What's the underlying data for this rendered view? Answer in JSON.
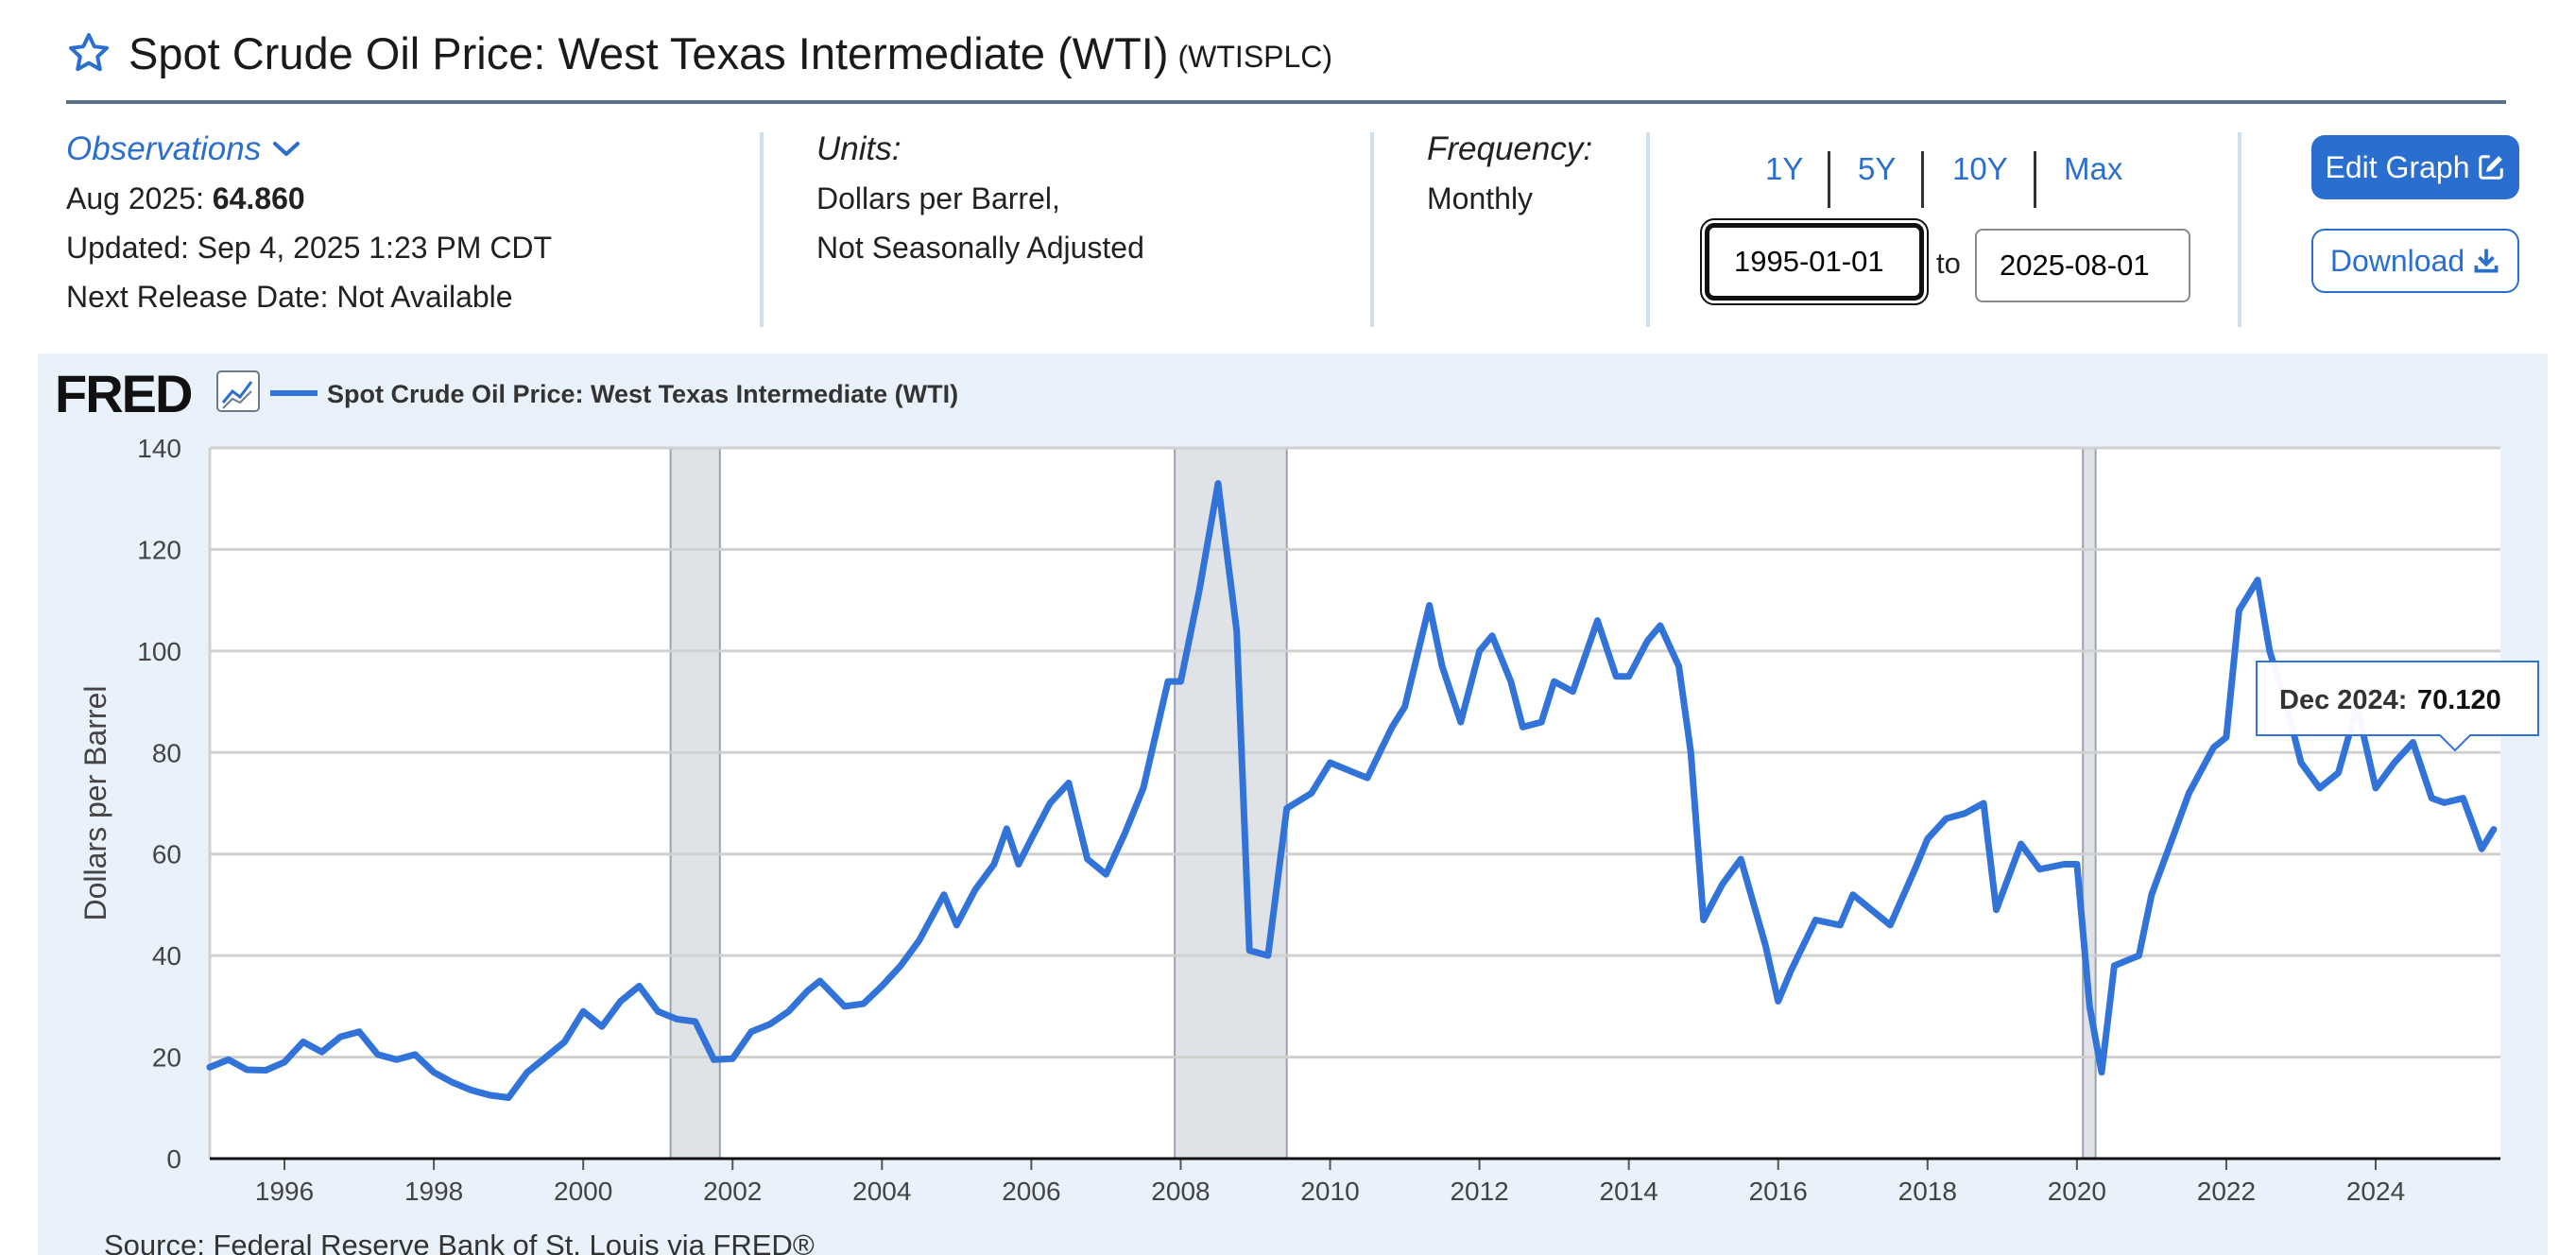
{
  "header": {
    "title": "Spot Crude Oil Price: West Texas Intermediate (WTI)",
    "series_id": "(WTISPLC)"
  },
  "observations": {
    "label": "Observations",
    "latest_period": "Aug 2025:",
    "latest_value": "64.860",
    "updated": "Updated: Sep 4, 2025 1:23 PM CDT",
    "next_release": "Next Release Date: Not Available"
  },
  "units": {
    "label": "Units:",
    "line1": "Dollars per Barrel,",
    "line2": "Not Seasonally Adjusted"
  },
  "frequency": {
    "label": "Frequency:",
    "value": "Monthly"
  },
  "range": {
    "buttons": [
      "1Y",
      "5Y",
      "10Y",
      "Max"
    ],
    "start": "1995-01-01",
    "to_label": "to",
    "end": "2025-08-01"
  },
  "toolbar": {
    "edit_label": "Edit Graph",
    "download_label": "Download"
  },
  "chart": {
    "logo": "FRED",
    "legend": "Spot Crude Oil Price: West Texas Intermediate (WTI)",
    "source": "Source: Federal Reserve Bank of St. Louis via FRED®",
    "tooltip_label": "Dec 2024:",
    "tooltip_value": "70.120",
    "colors": {
      "line": "#3173d9",
      "recession": "#dfe3e8",
      "accent": "#2a6fcf"
    }
  },
  "chart_data": {
    "type": "line",
    "ylabel": "Dollars per Barrel",
    "xlabel": "",
    "ylim": [
      0,
      140
    ],
    "y_ticks": [
      0,
      20,
      40,
      60,
      80,
      100,
      120,
      140
    ],
    "x_ticks": [
      1996,
      1998,
      2000,
      2002,
      2004,
      2006,
      2008,
      2010,
      2012,
      2014,
      2016,
      2018,
      2020,
      2022,
      2024
    ],
    "grid": true,
    "recessions": [
      [
        2001.17,
        2001.83
      ],
      [
        2007.92,
        2009.42
      ],
      [
        2020.08,
        2020.25
      ]
    ],
    "series": [
      {
        "x": [
          1995.0,
          1995.25,
          1995.5,
          1995.75,
          1996.0,
          1996.25,
          1996.5,
          1996.75,
          1997.0,
          1997.25,
          1997.5,
          1997.75,
          1998.0,
          1998.25,
          1998.5,
          1998.75,
          1999.0,
          1999.25,
          1999.5,
          1999.75,
          2000.0,
          2000.25,
          2000.5,
          2000.75,
          2001.0,
          2001.25,
          2001.5,
          2001.75,
          2002.0,
          2002.25,
          2002.5,
          2002.75,
          2003.0,
          2003.17,
          2003.5,
          2003.75,
          2004.0,
          2004.25,
          2004.5,
          2004.83,
          2005.0,
          2005.25,
          2005.5,
          2005.67,
          2005.83,
          2006.0,
          2006.25,
          2006.5,
          2006.75,
          2007.0,
          2007.25,
          2007.5,
          2007.83,
          2008.0,
          2008.25,
          2008.5,
          2008.75,
          2008.92,
          2009.17,
          2009.42,
          2009.75,
          2010.0,
          2010.33,
          2010.5,
          2010.83,
          2011.0,
          2011.33,
          2011.5,
          2011.75,
          2012.0,
          2012.17,
          2012.42,
          2012.58,
          2012.83,
          2013.0,
          2013.25,
          2013.58,
          2013.83,
          2014.0,
          2014.25,
          2014.42,
          2014.67,
          2014.83,
          2015.0,
          2015.25,
          2015.5,
          2015.83,
          2016.0,
          2016.17,
          2016.5,
          2016.83,
          2017.0,
          2017.25,
          2017.5,
          2017.83,
          2018.0,
          2018.25,
          2018.5,
          2018.75,
          2018.92,
          2019.25,
          2019.5,
          2019.83,
          2020.0,
          2020.17,
          2020.33,
          2020.5,
          2020.83,
          2021.0,
          2021.25,
          2021.5,
          2021.83,
          2022.0,
          2022.17,
          2022.42,
          2022.58,
          2022.83,
          2023.0,
          2023.25,
          2023.5,
          2023.75,
          2024.0,
          2024.25,
          2024.5,
          2024.75,
          2024.92,
          2025.17,
          2025.42,
          2025.58
        ],
        "y": [
          18.0,
          19.5,
          17.5,
          17.4,
          19.0,
          23.0,
          21.0,
          24.0,
          25.0,
          20.5,
          19.5,
          20.5,
          17.0,
          15.0,
          13.5,
          12.5,
          12.0,
          17.0,
          20.0,
          23.0,
          29.0,
          26.0,
          31.0,
          34.0,
          29.0,
          27.5,
          27.0,
          19.5,
          19.7,
          25.0,
          26.5,
          29.0,
          33.0,
          35.0,
          30.0,
          30.5,
          34.0,
          38.0,
          43.0,
          52.0,
          46.0,
          53.0,
          58.0,
          65.0,
          58.0,
          63.0,
          70.0,
          74.0,
          59.0,
          56.0,
          64.0,
          73.0,
          94.0,
          94.0,
          112.0,
          133.0,
          104.0,
          41.0,
          40.0,
          69.0,
          72.0,
          78.0,
          76.0,
          75.0,
          85.0,
          89.0,
          109.0,
          97.0,
          86.0,
          100.0,
          103.0,
          94.0,
          85.0,
          86.0,
          94.0,
          92.0,
          106.0,
          95.0,
          95.0,
          102.0,
          105.0,
          97.0,
          80.0,
          47.0,
          54.0,
          59.0,
          42.0,
          31.0,
          37.0,
          47.0,
          46.0,
          52.0,
          49.0,
          46.0,
          57.0,
          63.0,
          67.0,
          68.0,
          70.0,
          49.0,
          62.0,
          57.0,
          58.0,
          58.0,
          30.0,
          17.0,
          38.0,
          40.0,
          52.0,
          62.0,
          72.0,
          81.0,
          83.0,
          108.0,
          114.0,
          100.0,
          88.0,
          78.0,
          73.0,
          76.0,
          89.0,
          73.0,
          78.0,
          82.0,
          71.0,
          70.12,
          71.0,
          61.0,
          64.86
        ]
      }
    ]
  }
}
